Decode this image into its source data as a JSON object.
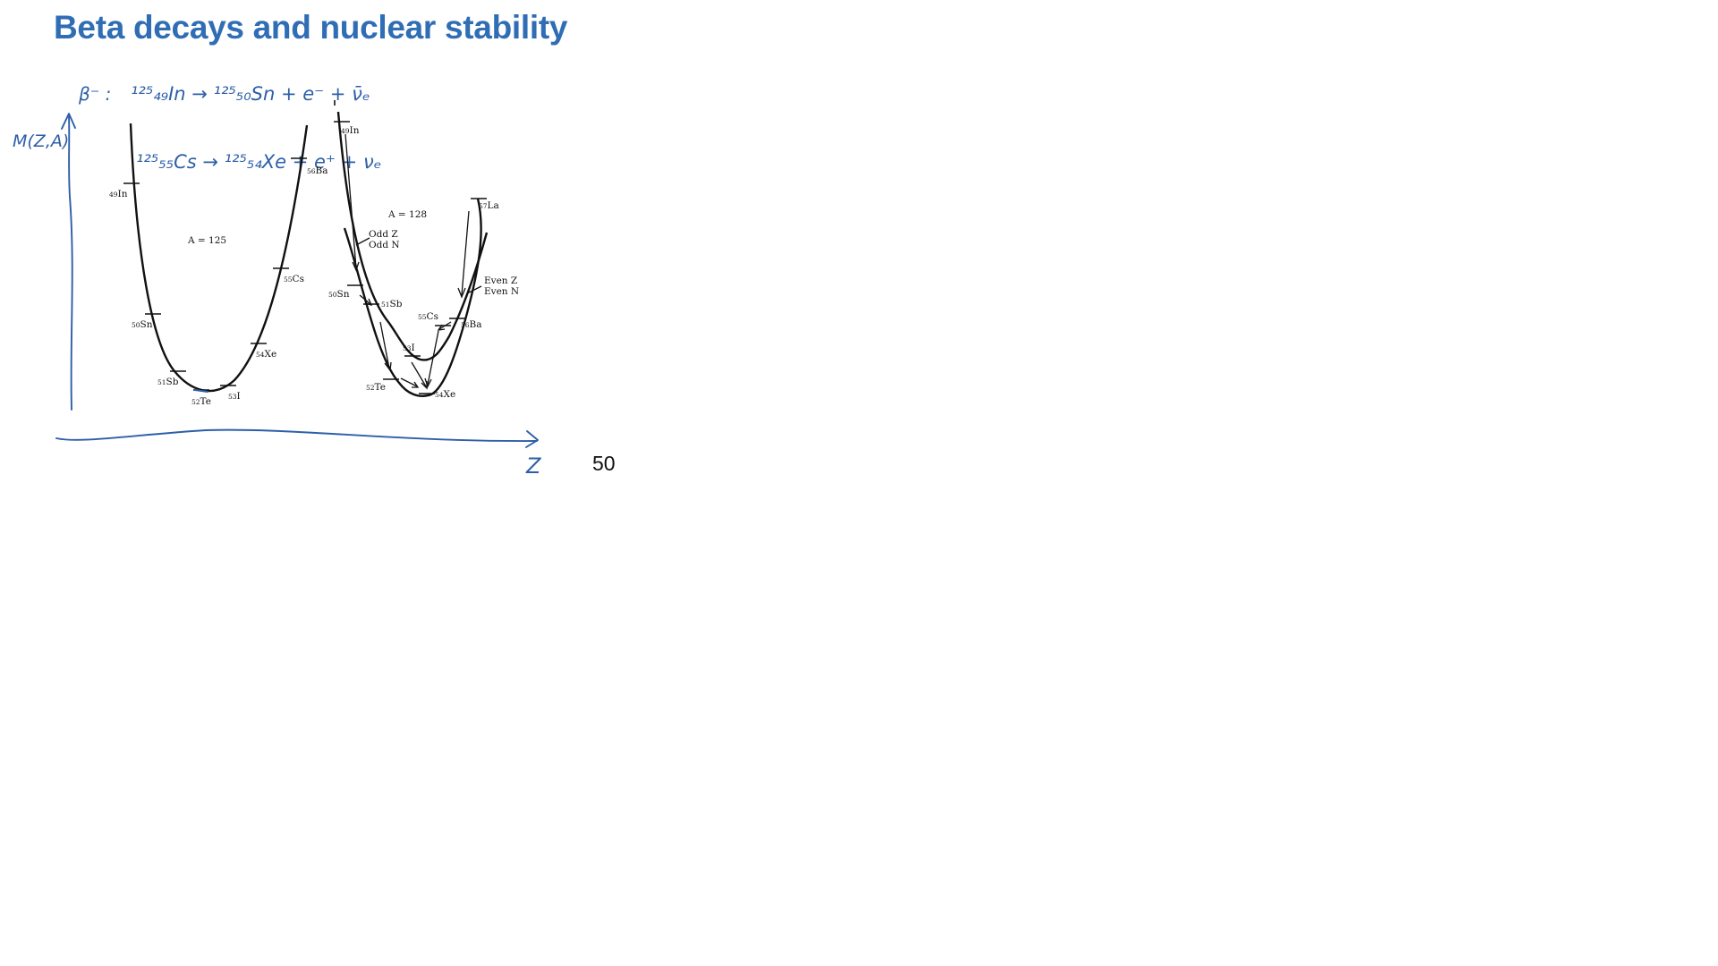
{
  "slide": {
    "title": "Beta decays and nuclear stability",
    "page_number": "50"
  },
  "left_plot": {
    "mass_label": "A = 125",
    "nuclides": [
      {
        "z": "49",
        "sym": "In"
      },
      {
        "z": "50",
        "sym": "Sn"
      },
      {
        "z": "51",
        "sym": "Sb"
      },
      {
        "z": "52",
        "sym": "Te"
      },
      {
        "z": "53",
        "sym": "I"
      },
      {
        "z": "54",
        "sym": "Xe"
      },
      {
        "z": "55",
        "sym": "Cs"
      },
      {
        "z": "56",
        "sym": "Ba"
      }
    ]
  },
  "right_plot": {
    "mass_label": "A = 128",
    "odd_label_1": "Odd Z",
    "odd_label_2": "Odd N",
    "even_label_1": "Even Z",
    "even_label_2": "Even N",
    "nuclides": [
      {
        "z": "49",
        "sym": "In"
      },
      {
        "z": "50",
        "sym": "Sn"
      },
      {
        "z": "51",
        "sym": "Sb"
      },
      {
        "z": "52",
        "sym": "Te"
      },
      {
        "z": "53",
        "sym": "I"
      },
      {
        "z": "54",
        "sym": "Xe"
      },
      {
        "z": "55",
        "sym": "Cs"
      },
      {
        "z": "56",
        "sym": "Ba"
      },
      {
        "z": "57",
        "sym": "La"
      }
    ]
  },
  "annotations": {
    "beta_minus": "β⁻ :",
    "equation_1": "¹²⁵₄₉In → ¹²⁵₅₀Sn + e⁻ + ν̄ₑ",
    "equation_2": "¹²⁵₅₅Cs → ¹²⁵₅₄Xe + e⁺ + νₑ",
    "y_axis_label": "M(Z,A)",
    "x_axis_label": "Z"
  },
  "colors": {
    "title": "#2f6db5",
    "ink": "#2d5fa8",
    "print": "#111111"
  }
}
